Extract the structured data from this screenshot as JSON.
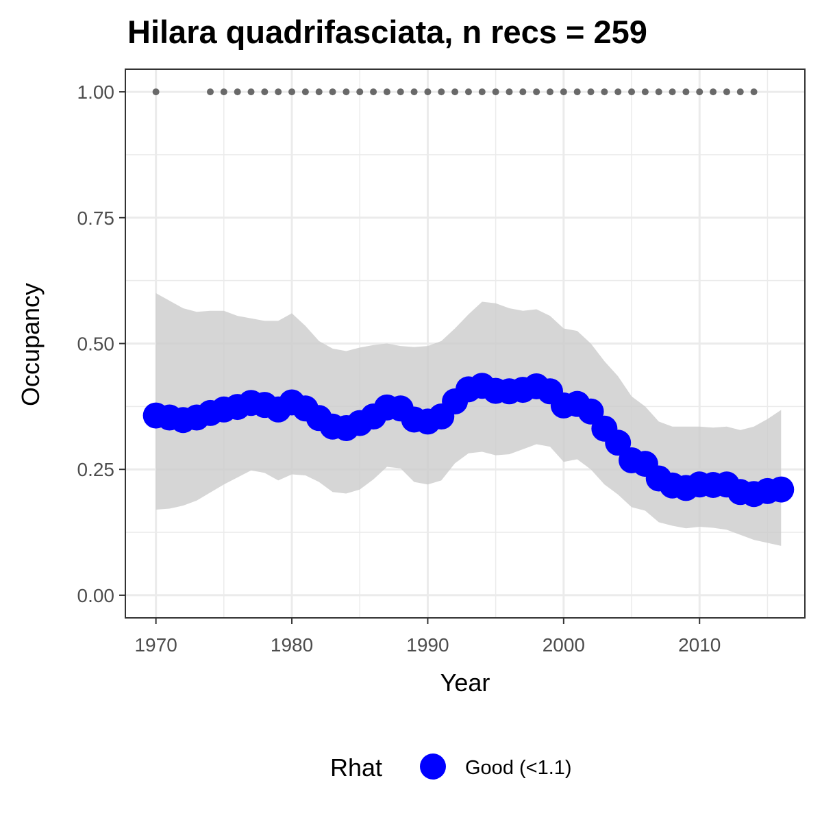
{
  "chart_data": {
    "type": "line",
    "title": "Hilara quadrifasciata, n recs = 259",
    "xlabel": "Year",
    "ylabel": "Occupancy",
    "xlim": [
      1967.75,
      2017.75
    ],
    "ylim": [
      -0.045,
      1.045
    ],
    "x_ticks": [
      1970,
      1980,
      1990,
      2000,
      2010
    ],
    "y_ticks": [
      0.0,
      0.25,
      0.5,
      0.75,
      1.0
    ],
    "y_tick_labels": [
      "0.00",
      "0.25",
      "0.50",
      "0.75",
      "1.00"
    ],
    "grid": true,
    "legend": {
      "title": "Rhat",
      "position": "bottom",
      "entries": [
        {
          "label": "Good (<1.1)",
          "color": "#0000ff"
        }
      ]
    },
    "series": [
      {
        "name": "Good (<1.1)",
        "color": "#0000ff",
        "x": [
          1970,
          1971,
          1972,
          1973,
          1974,
          1975,
          1976,
          1977,
          1978,
          1979,
          1980,
          1981,
          1982,
          1983,
          1984,
          1985,
          1986,
          1987,
          1988,
          1989,
          1990,
          1991,
          1992,
          1993,
          1994,
          1995,
          1996,
          1997,
          1998,
          1999,
          2000,
          2001,
          2002,
          2003,
          2004,
          2005,
          2006,
          2007,
          2008,
          2009,
          2010,
          2011,
          2012,
          2013,
          2014,
          2015,
          2016
        ],
        "y": [
          0.357,
          0.353,
          0.348,
          0.353,
          0.362,
          0.369,
          0.374,
          0.382,
          0.378,
          0.369,
          0.383,
          0.371,
          0.352,
          0.335,
          0.332,
          0.342,
          0.355,
          0.373,
          0.371,
          0.349,
          0.345,
          0.355,
          0.385,
          0.409,
          0.416,
          0.406,
          0.405,
          0.408,
          0.415,
          0.405,
          0.377,
          0.38,
          0.365,
          0.331,
          0.303,
          0.268,
          0.261,
          0.232,
          0.218,
          0.213,
          0.22,
          0.219,
          0.22,
          0.205,
          0.201,
          0.207,
          0.21
        ],
        "lower": [
          0.17,
          0.172,
          0.178,
          0.188,
          0.204,
          0.22,
          0.234,
          0.248,
          0.243,
          0.228,
          0.24,
          0.238,
          0.225,
          0.205,
          0.202,
          0.21,
          0.23,
          0.255,
          0.252,
          0.225,
          0.22,
          0.228,
          0.262,
          0.282,
          0.285,
          0.278,
          0.28,
          0.29,
          0.3,
          0.295,
          0.265,
          0.27,
          0.25,
          0.22,
          0.2,
          0.175,
          0.168,
          0.145,
          0.138,
          0.133,
          0.136,
          0.134,
          0.13,
          0.12,
          0.11,
          0.104,
          0.098
        ],
        "upper": [
          0.6,
          0.585,
          0.57,
          0.563,
          0.565,
          0.565,
          0.555,
          0.55,
          0.545,
          0.545,
          0.56,
          0.535,
          0.505,
          0.49,
          0.485,
          0.492,
          0.497,
          0.5,
          0.495,
          0.493,
          0.495,
          0.505,
          0.53,
          0.558,
          0.583,
          0.58,
          0.57,
          0.565,
          0.568,
          0.555,
          0.53,
          0.525,
          0.5,
          0.465,
          0.435,
          0.395,
          0.375,
          0.345,
          0.335,
          0.335,
          0.335,
          0.333,
          0.335,
          0.328,
          0.335,
          0.35,
          0.368
        ]
      }
    ],
    "records": {
      "y": 1.0,
      "color": "#696969",
      "x": [
        1970,
        1974,
        1975,
        1976,
        1977,
        1978,
        1979,
        1980,
        1981,
        1982,
        1983,
        1984,
        1985,
        1986,
        1987,
        1988,
        1989,
        1990,
        1991,
        1992,
        1993,
        1994,
        1995,
        1996,
        1997,
        1998,
        1999,
        2000,
        2001,
        2002,
        2003,
        2004,
        2005,
        2006,
        2007,
        2008,
        2009,
        2010,
        2011,
        2012,
        2013,
        2014
      ]
    }
  }
}
